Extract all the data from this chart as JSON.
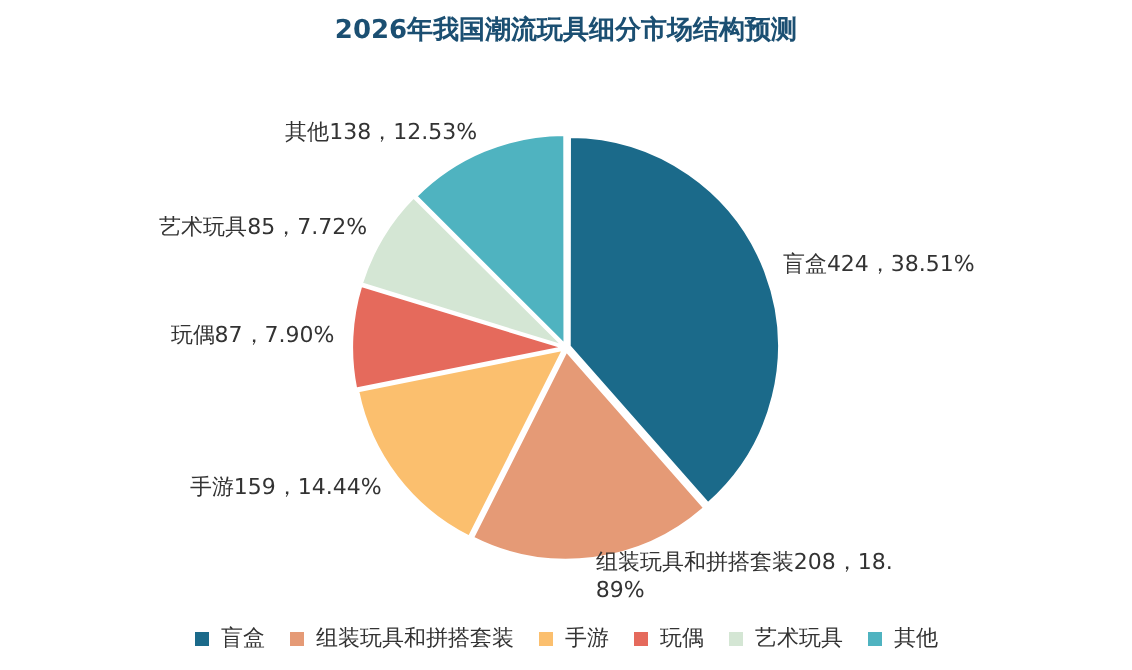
{
  "chart_data": {
    "type": "pie",
    "title": "2026年我国潮流玩具细分市场结构预测",
    "categories": [
      "盲盒",
      "组装玩具和拼搭套装",
      "手游",
      "玩偶",
      "艺术玩具",
      "其他"
    ],
    "values": [
      424,
      208,
      159,
      87,
      85,
      138
    ],
    "value_labels": [
      "424，38.51%",
      "208，18.89%",
      "159，14.44%",
      "87，7.90%",
      "85，7.72%",
      "138，12.53%"
    ],
    "colors": [
      "#1b6a8a",
      "#e59a76",
      "#fbbf6e",
      "#e56a5c",
      "#d4e6d4",
      "#4fb3c0"
    ],
    "legend": "bottom"
  }
}
